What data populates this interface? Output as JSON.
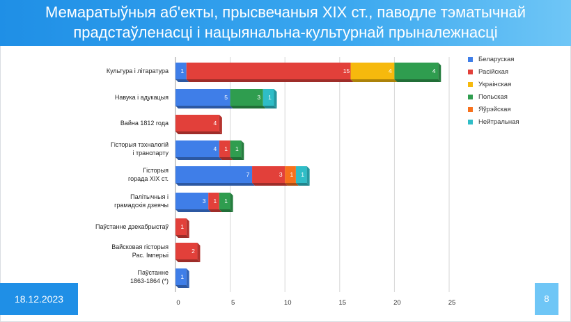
{
  "title_lines": [
    "Мемаратыўныя аб'екты, прысвечаныя ХІХ ст., паводле тэматычнай",
    "прадстаўленасці і нацыянальна-культурнай прыналежнасці"
  ],
  "footer": {
    "date": "18.12.2023",
    "page": "8"
  },
  "colors": {
    "Беларуская": "#3f7ee8",
    "Расійская": "#e2403a",
    "Украінская": "#f6b90d",
    "Польская": "#2f9d4f",
    "Яўрэйская": "#f7711c",
    "Нейтральная": "#2fbdc7"
  },
  "chart_data": {
    "type": "bar",
    "orientation": "horizontal",
    "stacked": true,
    "categories": [
      "Культура і літаратура",
      "Навука і адукацыя",
      "Вайна 1812 года",
      "Гісторыя тэхналогій і транспарту",
      "Гісторыя горада ХІХ ст.",
      "Палітычныя і грамадскія дзеячы",
      "Паўстанне дзекабрыстаў",
      "Вайсковая гісторыя Рас. Імперыі",
      "Паўстанне 1863-1864 (*)"
    ],
    "series": [
      {
        "name": "Беларуская",
        "values": [
          1,
          5,
          0,
          4,
          7,
          3,
          0,
          0,
          1
        ]
      },
      {
        "name": "Расійская",
        "values": [
          15,
          0,
          4,
          1,
          3,
          1,
          1,
          2,
          0
        ]
      },
      {
        "name": "Украінская",
        "values": [
          4,
          0,
          0,
          0,
          0,
          0,
          0,
          0,
          0
        ]
      },
      {
        "name": "Польская",
        "values": [
          4,
          3,
          0,
          1,
          0,
          1,
          0,
          0,
          0
        ]
      },
      {
        "name": "Яўрэйская",
        "values": [
          0,
          0,
          0,
          0,
          1,
          0,
          0,
          0,
          0
        ]
      },
      {
        "name": "Нейтральная",
        "values": [
          0,
          1,
          0,
          0,
          1,
          0,
          0,
          0,
          0
        ]
      }
    ],
    "xlim": [
      0,
      25
    ],
    "xticks": [
      0,
      5,
      10,
      15,
      20,
      25
    ],
    "legend_position": "right",
    "grid": "vertical"
  }
}
